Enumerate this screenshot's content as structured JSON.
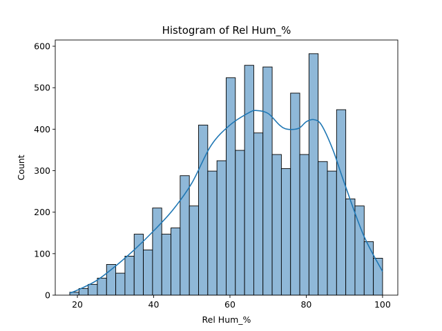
{
  "chart_data": {
    "type": "bar",
    "subtype": "histogram-with-kde",
    "title": "Histogram of Rel Hum_%",
    "xlabel": "Rel Hum_%",
    "ylabel": "Count",
    "xlim": [
      14.2,
      104.0
    ],
    "ylim": [
      0,
      615
    ],
    "xticks": [
      20,
      40,
      60,
      80,
      100
    ],
    "yticks": [
      0,
      100,
      200,
      300,
      400,
      500,
      600
    ],
    "grid": false,
    "legend": "none",
    "colors": {
      "bar_fill": "#8fb8d8",
      "bar_edge": "#000000",
      "kde_line": "#1f77b4"
    },
    "bins": {
      "start": 18,
      "width": 2.412,
      "counts": [
        7,
        16,
        26,
        41,
        74,
        53,
        94,
        147,
        109,
        210,
        147,
        162,
        288,
        215,
        410,
        299,
        324,
        524,
        349,
        554,
        391,
        550,
        339,
        305,
        487,
        339,
        582,
        322,
        299,
        447,
        232,
        215,
        129,
        89
      ]
    },
    "kde": {
      "x": [
        18,
        20,
        25,
        30,
        35,
        40,
        45,
        50,
        55,
        60,
        65,
        67,
        70,
        73,
        75,
        78,
        80,
        82,
        84,
        87,
        90,
        95,
        100
      ],
      "y": [
        5,
        12,
        35,
        70,
        110,
        155,
        205,
        270,
        360,
        410,
        440,
        445,
        438,
        410,
        400,
        402,
        418,
        423,
        410,
        350,
        270,
        145,
        57
      ]
    }
  }
}
